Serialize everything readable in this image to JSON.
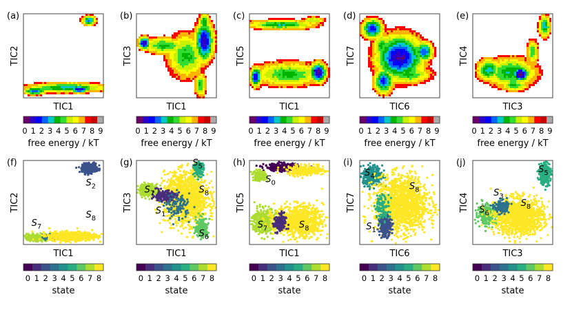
{
  "figure": {
    "row1_cbar_label": "free energy / kT",
    "row2_cbar_label": "state",
    "fe_ticks": [
      "0",
      "1",
      "2",
      "3",
      "4",
      "5",
      "6",
      "7",
      "8",
      "9"
    ],
    "state_ticks": [
      "0",
      "1",
      "2",
      "3",
      "4",
      "5",
      "6",
      "7",
      "8"
    ]
  },
  "colors": {
    "fe_colormap": [
      "#6a006a",
      "#2d00c8",
      "#0000ff",
      "#0064ff",
      "#00c8c8",
      "#00b400",
      "#32dc32",
      "#c8f000",
      "#ffff00",
      "#ffb400",
      "#ff0000",
      "#c80000",
      "#aaaaaa"
    ],
    "state_colors": [
      "#440154",
      "#472d7b",
      "#3b528b",
      "#2c728e",
      "#21918c",
      "#28ae80",
      "#5ec962",
      "#addc30",
      "#fde725"
    ]
  },
  "chart_data": [
    {
      "panel": "(a)",
      "type": "heatmap",
      "quantity": "free energy",
      "xlabel": "TIC1",
      "ylabel": "TIC2",
      "clim": [
        0,
        9.5
      ],
      "basins": [
        {
          "x": 0.82,
          "y": 0.92,
          "sx": 0.06,
          "sy": 0.04,
          "depth": 6.5
        },
        {
          "x": 0.55,
          "y": 0.12,
          "sx": 0.35,
          "sy": 0.04,
          "depth": 6.0
        },
        {
          "x": 0.7,
          "y": 0.1,
          "sx": 0.08,
          "sy": 0.03,
          "depth": 8.5
        },
        {
          "x": 0.14,
          "y": 0.08,
          "sx": 0.1,
          "sy": 0.03,
          "depth": 7.0
        }
      ]
    },
    {
      "panel": "(b)",
      "type": "heatmap",
      "quantity": "free energy",
      "xlabel": "TIC1",
      "ylabel": "TIC3",
      "clim": [
        0,
        9.5
      ],
      "basins": [
        {
          "x": 0.1,
          "y": 0.65,
          "sx": 0.05,
          "sy": 0.05,
          "depth": 9.0
        },
        {
          "x": 0.35,
          "y": 0.62,
          "sx": 0.18,
          "sy": 0.07,
          "depth": 5.0
        },
        {
          "x": 0.85,
          "y": 0.67,
          "sx": 0.08,
          "sy": 0.16,
          "depth": 8.5
        },
        {
          "x": 0.85,
          "y": 0.9,
          "sx": 0.05,
          "sy": 0.07,
          "depth": 5.5
        },
        {
          "x": 0.8,
          "y": 0.15,
          "sx": 0.05,
          "sy": 0.1,
          "depth": 5.0
        },
        {
          "x": 0.62,
          "y": 0.5,
          "sx": 0.16,
          "sy": 0.18,
          "depth": 5.0
        }
      ]
    },
    {
      "panel": "(c)",
      "type": "heatmap",
      "quantity": "free energy",
      "xlabel": "TIC1",
      "ylabel": "TIC5",
      "clim": [
        0,
        9.5
      ],
      "basins": [
        {
          "x": 0.4,
          "y": 0.87,
          "sx": 0.3,
          "sy": 0.04,
          "depth": 5.5
        },
        {
          "x": 0.8,
          "y": 0.92,
          "sx": 0.1,
          "sy": 0.03,
          "depth": 4.0
        },
        {
          "x": 0.08,
          "y": 0.25,
          "sx": 0.05,
          "sy": 0.08,
          "depth": 8.0
        },
        {
          "x": 0.48,
          "y": 0.28,
          "sx": 0.3,
          "sy": 0.1,
          "depth": 5.0
        },
        {
          "x": 0.86,
          "y": 0.3,
          "sx": 0.07,
          "sy": 0.08,
          "depth": 9.0
        }
      ]
    },
    {
      "panel": "(d)",
      "type": "heatmap",
      "quantity": "free energy",
      "xlabel": "TIC6",
      "ylabel": "TIC7",
      "clim": [
        0,
        9.5
      ],
      "basins": [
        {
          "x": 0.16,
          "y": 0.82,
          "sx": 0.09,
          "sy": 0.08,
          "depth": 7.5
        },
        {
          "x": 0.28,
          "y": 0.62,
          "sx": 0.08,
          "sy": 0.1,
          "depth": 5.0
        },
        {
          "x": 0.5,
          "y": 0.48,
          "sx": 0.2,
          "sy": 0.18,
          "depth": 8.5
        },
        {
          "x": 0.55,
          "y": 0.48,
          "sx": 0.05,
          "sy": 0.05,
          "depth": 9.5
        },
        {
          "x": 0.8,
          "y": 0.55,
          "sx": 0.08,
          "sy": 0.08,
          "depth": 7.0
        },
        {
          "x": 0.3,
          "y": 0.2,
          "sx": 0.08,
          "sy": 0.1,
          "depth": 7.5
        },
        {
          "x": 0.6,
          "y": 0.28,
          "sx": 0.2,
          "sy": 0.08,
          "depth": 5.0
        }
      ]
    },
    {
      "panel": "(e)",
      "type": "heatmap",
      "quantity": "free energy",
      "xlabel": "TIC3",
      "ylabel": "TIC4",
      "clim": [
        0,
        9.5
      ],
      "basins": [
        {
          "x": 0.9,
          "y": 0.85,
          "sx": 0.05,
          "sy": 0.09,
          "depth": 6.0
        },
        {
          "x": 0.75,
          "y": 0.55,
          "sx": 0.05,
          "sy": 0.1,
          "depth": 4.5
        },
        {
          "x": 0.2,
          "y": 0.33,
          "sx": 0.1,
          "sy": 0.09,
          "depth": 6.0
        },
        {
          "x": 0.48,
          "y": 0.3,
          "sx": 0.22,
          "sy": 0.12,
          "depth": 5.5
        },
        {
          "x": 0.6,
          "y": 0.28,
          "sx": 0.07,
          "sy": 0.06,
          "depth": 9.5
        },
        {
          "x": 0.52,
          "y": 0.15,
          "sx": 0.12,
          "sy": 0.05,
          "depth": 5.0
        }
      ]
    },
    {
      "panel": "(f)",
      "type": "scatter",
      "quantity": "state",
      "xlabel": "TIC1",
      "ylabel": "TIC2",
      "states": [
        {
          "state": 2,
          "x": 0.83,
          "y": 0.91,
          "sx": 0.06,
          "sy": 0.035,
          "n": 420
        },
        {
          "state": 7,
          "x": 0.15,
          "y": 0.08,
          "sx": 0.1,
          "sy": 0.025,
          "n": 260
        },
        {
          "state": 3,
          "x": 0.33,
          "y": 0.09,
          "sx": 0.05,
          "sy": 0.025,
          "n": 90
        },
        {
          "state": 8,
          "x": 0.62,
          "y": 0.1,
          "sx": 0.2,
          "sy": 0.035,
          "n": 700
        }
      ],
      "annotations": [
        {
          "label": "S",
          "sub": "2",
          "x": 0.78,
          "y": 0.7
        },
        {
          "label": "S",
          "sub": "8",
          "x": 0.78,
          "y": 0.32
        },
        {
          "label": "S",
          "sub": "7",
          "x": 0.1,
          "y": 0.22
        }
      ]
    },
    {
      "panel": "(g)",
      "type": "scatter",
      "quantity": "state",
      "xlabel": "TIC1",
      "ylabel": "TIC3",
      "states": [
        {
          "state": 8,
          "x": 0.62,
          "y": 0.55,
          "sx": 0.18,
          "sy": 0.2,
          "n": 1400
        },
        {
          "state": 7,
          "x": 0.15,
          "y": 0.65,
          "sx": 0.08,
          "sy": 0.05,
          "n": 260
        },
        {
          "state": 1,
          "x": 0.35,
          "y": 0.58,
          "sx": 0.1,
          "sy": 0.04,
          "n": 220
        },
        {
          "state": 5,
          "x": 0.78,
          "y": 0.9,
          "sx": 0.04,
          "sy": 0.05,
          "n": 160
        },
        {
          "state": 6,
          "x": 0.82,
          "y": 0.2,
          "sx": 0.05,
          "sy": 0.08,
          "n": 200
        },
        {
          "state": 3,
          "x": 0.52,
          "y": 0.45,
          "sx": 0.1,
          "sy": 0.1,
          "n": 120
        }
      ],
      "annotations": [
        {
          "label": "S",
          "sub": "5",
          "x": 0.7,
          "y": 0.94
        },
        {
          "label": "S",
          "sub": "7",
          "x": 0.1,
          "y": 0.62
        },
        {
          "label": "S",
          "sub": "1",
          "x": 0.24,
          "y": 0.37
        },
        {
          "label": "S",
          "sub": "8",
          "x": 0.78,
          "y": 0.62
        },
        {
          "label": "S",
          "sub": "6",
          "x": 0.78,
          "y": 0.1
        }
      ]
    },
    {
      "panel": "(h)",
      "type": "scatter",
      "quantity": "state",
      "xlabel": "TIC1",
      "ylabel": "TIC5",
      "states": [
        {
          "state": 0,
          "x": 0.4,
          "y": 0.92,
          "sx": 0.14,
          "sy": 0.03,
          "n": 260
        },
        {
          "state": 7,
          "x": 0.12,
          "y": 0.82,
          "sx": 0.06,
          "sy": 0.04,
          "n": 120
        },
        {
          "state": 8,
          "x": 0.7,
          "y": 0.88,
          "sx": 0.15,
          "sy": 0.04,
          "n": 300
        },
        {
          "state": 7,
          "x": 0.18,
          "y": 0.28,
          "sx": 0.1,
          "sy": 0.1,
          "n": 400
        },
        {
          "state": 8,
          "x": 0.62,
          "y": 0.28,
          "sx": 0.2,
          "sy": 0.12,
          "n": 900
        },
        {
          "state": 1,
          "x": 0.38,
          "y": 0.25,
          "sx": 0.05,
          "sy": 0.08,
          "n": 140
        }
      ],
      "annotations": [
        {
          "label": "S",
          "sub": "0",
          "x": 0.2,
          "y": 0.74
        },
        {
          "label": "S",
          "sub": "7",
          "x": 0.1,
          "y": 0.2
        },
        {
          "label": "S",
          "sub": "8",
          "x": 0.62,
          "y": 0.2
        }
      ]
    },
    {
      "panel": "(i)",
      "type": "scatter",
      "quantity": "state",
      "xlabel": "TIC6",
      "ylabel": "TIC7",
      "states": [
        {
          "state": 4,
          "x": 0.16,
          "y": 0.82,
          "sx": 0.08,
          "sy": 0.08,
          "n": 350
        },
        {
          "state": 8,
          "x": 0.52,
          "y": 0.48,
          "sx": 0.22,
          "sy": 0.22,
          "n": 1600
        },
        {
          "state": 2,
          "x": 0.32,
          "y": 0.22,
          "sx": 0.05,
          "sy": 0.08,
          "n": 250
        },
        {
          "state": 5,
          "x": 0.28,
          "y": 0.45,
          "sx": 0.06,
          "sy": 0.1,
          "n": 100
        }
      ],
      "annotations": [
        {
          "label": "S",
          "sub": "4",
          "x": 0.06,
          "y": 0.82
        },
        {
          "label": "S",
          "sub": "8",
          "x": 0.62,
          "y": 0.66
        },
        {
          "label": "S",
          "sub": "1",
          "x": 0.08,
          "y": 0.18
        }
      ]
    },
    {
      "panel": "(j)",
      "type": "scatter",
      "quantity": "state",
      "xlabel": "TIC3",
      "ylabel": "TIC4",
      "states": [
        {
          "state": 5,
          "x": 0.9,
          "y": 0.85,
          "sx": 0.05,
          "sy": 0.09,
          "n": 300
        },
        {
          "state": 6,
          "x": 0.18,
          "y": 0.36,
          "sx": 0.08,
          "sy": 0.08,
          "n": 280
        },
        {
          "state": 8,
          "x": 0.58,
          "y": 0.33,
          "sx": 0.2,
          "sy": 0.14,
          "n": 1300
        },
        {
          "state": 3,
          "x": 0.36,
          "y": 0.45,
          "sx": 0.06,
          "sy": 0.05,
          "n": 150
        }
      ],
      "annotations": [
        {
          "label": "S",
          "sub": "5",
          "x": 0.82,
          "y": 0.86
        },
        {
          "label": "S",
          "sub": "3",
          "x": 0.26,
          "y": 0.58
        },
        {
          "label": "S",
          "sub": "6",
          "x": 0.08,
          "y": 0.38
        },
        {
          "label": "S",
          "sub": "8",
          "x": 0.6,
          "y": 0.46
        }
      ]
    }
  ]
}
